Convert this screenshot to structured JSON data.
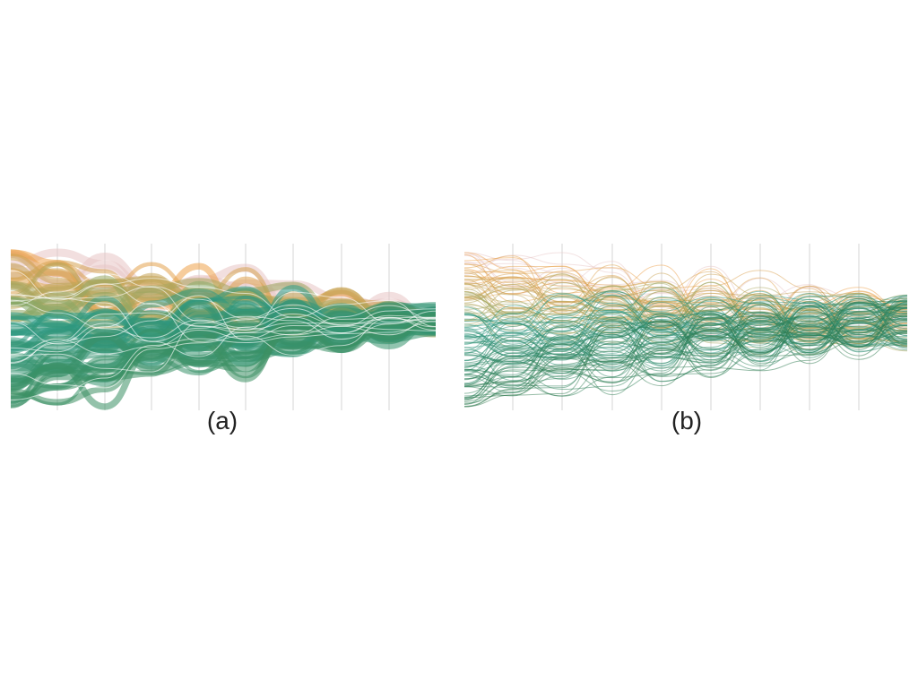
{
  "figure": {
    "panels": [
      {
        "id": "a",
        "caption": "(a)",
        "style": "bundled",
        "axes_count": 9,
        "palette": [
          "#f2a24a",
          "#e8a74c",
          "#7aa86a",
          "#2a9a86",
          "#3c8f63",
          "#5fa163",
          "#e7c5c5"
        ]
      },
      {
        "id": "b",
        "caption": "(b)",
        "style": "unbundled",
        "axes_count": 9,
        "palette": [
          "#f2a24a",
          "#e0a048",
          "#93a35d",
          "#2a9a86",
          "#2f7a4e",
          "#1f6b3f",
          "#e7c5c5"
        ]
      }
    ]
  }
}
